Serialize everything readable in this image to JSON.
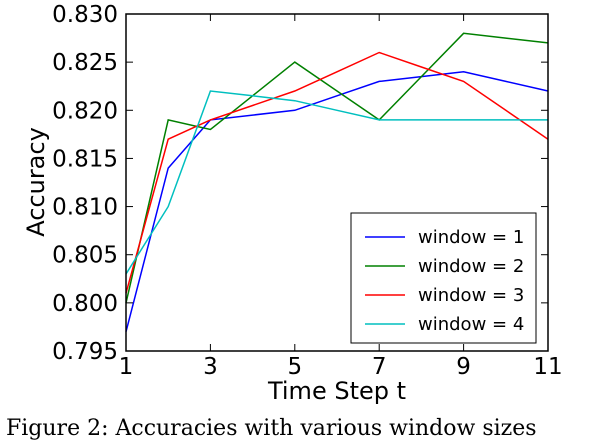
{
  "chart_data": {
    "type": "line",
    "xlabel": "Time Step t",
    "ylabel": "Accuracy",
    "x": [
      1,
      2,
      3,
      4,
      5,
      6,
      7,
      8,
      9,
      10,
      11
    ],
    "xticks": [
      "1",
      "3",
      "5",
      "7",
      "9",
      "11"
    ],
    "xlim": [
      1,
      11
    ],
    "yticks": [
      "0.795",
      "0.800",
      "0.805",
      "0.810",
      "0.815",
      "0.820",
      "0.825",
      "0.830"
    ],
    "ylim": [
      0.795,
      0.83
    ],
    "grid": false,
    "legend_position": "lower-right",
    "series": [
      {
        "name": "window = 1",
        "color": "#0000ff",
        "values": [
          0.797,
          0.814,
          0.819,
          0.8195,
          0.82,
          0.8215,
          0.823,
          0.8235,
          0.824,
          0.823,
          0.822
        ]
      },
      {
        "name": "window = 2",
        "color": "#008000",
        "values": [
          0.8,
          0.819,
          0.818,
          0.8215,
          0.825,
          0.822,
          0.819,
          0.8235,
          0.828,
          0.8275,
          0.827
        ]
      },
      {
        "name": "window = 3",
        "color": "#ff0000",
        "values": [
          0.801,
          0.817,
          0.819,
          0.8205,
          0.822,
          0.824,
          0.826,
          0.8245,
          0.823,
          0.82,
          0.817
        ]
      },
      {
        "name": "window = 4",
        "color": "#00bfbf",
        "values": [
          0.803,
          0.81,
          0.822,
          0.8215,
          0.821,
          0.82,
          0.819,
          0.819,
          0.819,
          0.819,
          0.819
        ]
      }
    ]
  },
  "caption": "Figure 2:  Accuracies with various window sizes"
}
